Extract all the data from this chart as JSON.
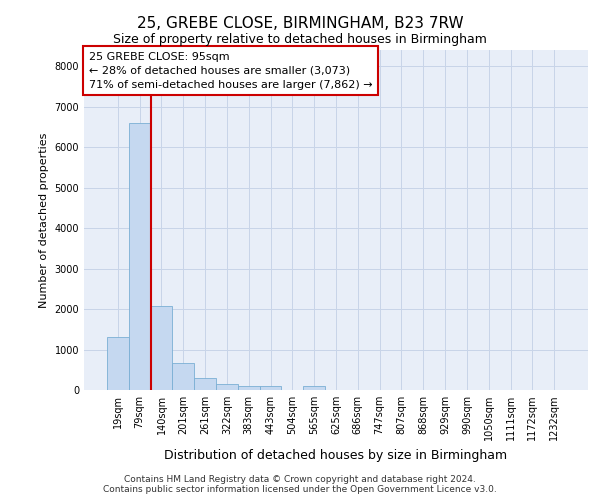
{
  "title1": "25, GREBE CLOSE, BIRMINGHAM, B23 7RW",
  "title2": "Size of property relative to detached houses in Birmingham",
  "xlabel": "Distribution of detached houses by size in Birmingham",
  "ylabel": "Number of detached properties",
  "categories": [
    "19sqm",
    "79sqm",
    "140sqm",
    "201sqm",
    "261sqm",
    "322sqm",
    "383sqm",
    "443sqm",
    "504sqm",
    "565sqm",
    "625sqm",
    "686sqm",
    "747sqm",
    "807sqm",
    "868sqm",
    "929sqm",
    "990sqm",
    "1050sqm",
    "1111sqm",
    "1172sqm",
    "1232sqm"
  ],
  "values": [
    1300,
    6600,
    2080,
    660,
    300,
    150,
    100,
    90,
    0,
    110,
    0,
    0,
    0,
    0,
    0,
    0,
    0,
    0,
    0,
    0,
    0
  ],
  "bar_color": "#c5d8f0",
  "bar_edge_color": "#7aafd4",
  "grid_color": "#c8d4e8",
  "background_color": "#e8eef8",
  "vline_x": 1.5,
  "vline_color": "#cc0000",
  "annotation_title": "25 GREBE CLOSE: 95sqm",
  "annotation_line1": "← 28% of detached houses are smaller (3,073)",
  "annotation_line2": "71% of semi-detached houses are larger (7,862) →",
  "annotation_box_color": "#cc0000",
  "ylim": [
    0,
    8400
  ],
  "yticks": [
    0,
    1000,
    2000,
    3000,
    4000,
    5000,
    6000,
    7000,
    8000
  ],
  "footer1": "Contains HM Land Registry data © Crown copyright and database right 2024.",
  "footer2": "Contains public sector information licensed under the Open Government Licence v3.0.",
  "title1_fontsize": 11,
  "title2_fontsize": 9,
  "ylabel_fontsize": 8,
  "xlabel_fontsize": 9,
  "tick_fontsize": 7,
  "footer_fontsize": 6.5,
  "ann_fontsize": 8
}
